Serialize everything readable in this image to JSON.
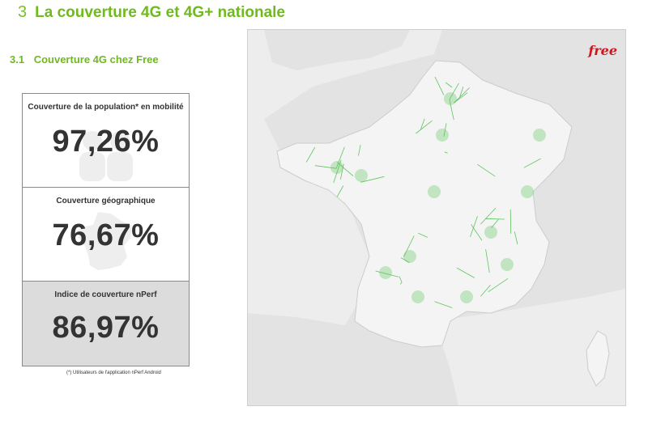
{
  "heading": {
    "number": "3",
    "title": "La couverture 4G et 4G+ nationale"
  },
  "subheading": {
    "number": "3.1",
    "title": "Couverture 4G chez Free"
  },
  "stats": [
    {
      "label": "Couverture de la population* en mobilité",
      "value": "97,26%",
      "icon": "people-icon"
    },
    {
      "label": "Couverture géographique",
      "value": "76,67%",
      "icon": "france-map-icon"
    },
    {
      "label": "Indice de couverture nPerf",
      "value": "86,97%"
    }
  ],
  "footnote": "(*) Utilisateurs de l'application nPerf Android",
  "map": {
    "logo": "free",
    "coverage_color": "#4fbf4f"
  }
}
